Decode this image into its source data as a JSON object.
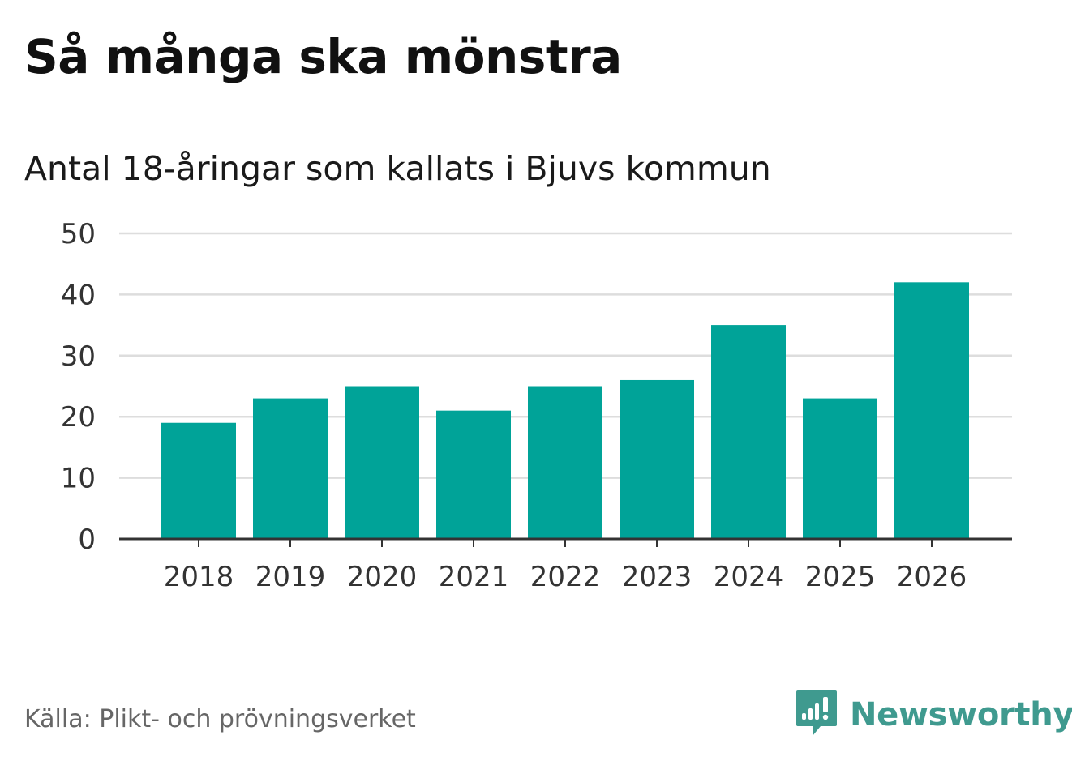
{
  "header": {
    "title": "Så många ska mönstra",
    "subtitle": "Antal 18-åringar som kallats i Bjuvs kommun"
  },
  "footer": {
    "source": "Källa: Plikt- och prövningsverket",
    "brand_name": "Newsworthy",
    "brand_icon": "newsworthy-logo-icon"
  },
  "colors": {
    "bar": "#00a398",
    "grid": "#dddddd",
    "axis": "#333333",
    "brand": "#3f9a8f"
  },
  "chart_data": {
    "type": "bar",
    "title": "Så många ska mönstra",
    "subtitle": "Antal 18-åringar som kallats i Bjuvs kommun",
    "xlabel": "",
    "ylabel": "",
    "categories": [
      "2018",
      "2019",
      "2020",
      "2021",
      "2022",
      "2023",
      "2024",
      "2025",
      "2026"
    ],
    "values": [
      19,
      23,
      25,
      21,
      25,
      26,
      35,
      23,
      42
    ],
    "ylim": [
      0,
      50
    ],
    "yticks": [
      0,
      10,
      20,
      30,
      40,
      50
    ],
    "grid": true,
    "legend": "none"
  }
}
